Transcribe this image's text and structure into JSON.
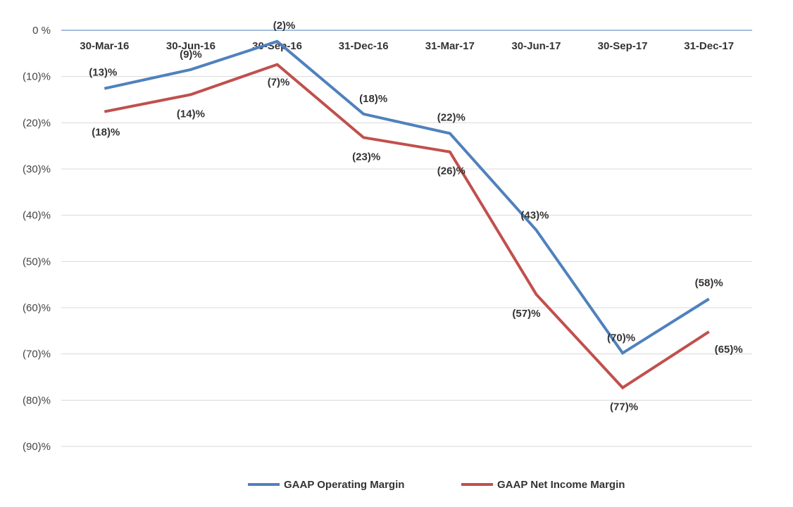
{
  "chart_data": {
    "type": "line",
    "title": "",
    "xlabel": "",
    "ylabel": "",
    "categories": [
      "30-Mar-16",
      "30-Jun-16",
      "30-Sep-16",
      "31-Dec-16",
      "31-Mar-17",
      "30-Jun-17",
      "30-Sep-17",
      "31-Dec-17"
    ],
    "ylim": [
      -90,
      0
    ],
    "yticks": [
      0,
      -10,
      -20,
      -30,
      -40,
      -50,
      -60,
      -70,
      -80,
      -90
    ],
    "ytick_labels": [
      "0 %",
      "(10)%",
      "(20)%",
      "(30)%",
      "(40)%",
      "(50)%",
      "(60)%",
      "(70)%",
      "(80)%",
      "(90)%"
    ],
    "grid": true,
    "legend_position": "bottom",
    "series": [
      {
        "name": "GAAP Operating Margin",
        "color": "#4f81bd",
        "values": [
          -12.6,
          -8.5,
          -2.4,
          -18.1,
          -22.3,
          -43.2,
          -69.8,
          -58.1
        ],
        "labels": [
          "(13)%",
          "(9)%",
          "(2)%",
          "(18)%",
          "(22)%",
          "(43)%",
          "(70)%",
          "(58)%"
        ]
      },
      {
        "name": "GAAP Net Income Margin",
        "color": "#c0504d",
        "values": [
          -17.6,
          -13.9,
          -7.4,
          -23.2,
          -26.3,
          -57.1,
          -77.3,
          -65.2
        ],
        "labels": [
          "(18)%",
          "(14)%",
          "(7)%",
          "(23)%",
          "(26)%",
          "(57)%",
          "(77)%",
          "(65)%"
        ]
      }
    ]
  }
}
